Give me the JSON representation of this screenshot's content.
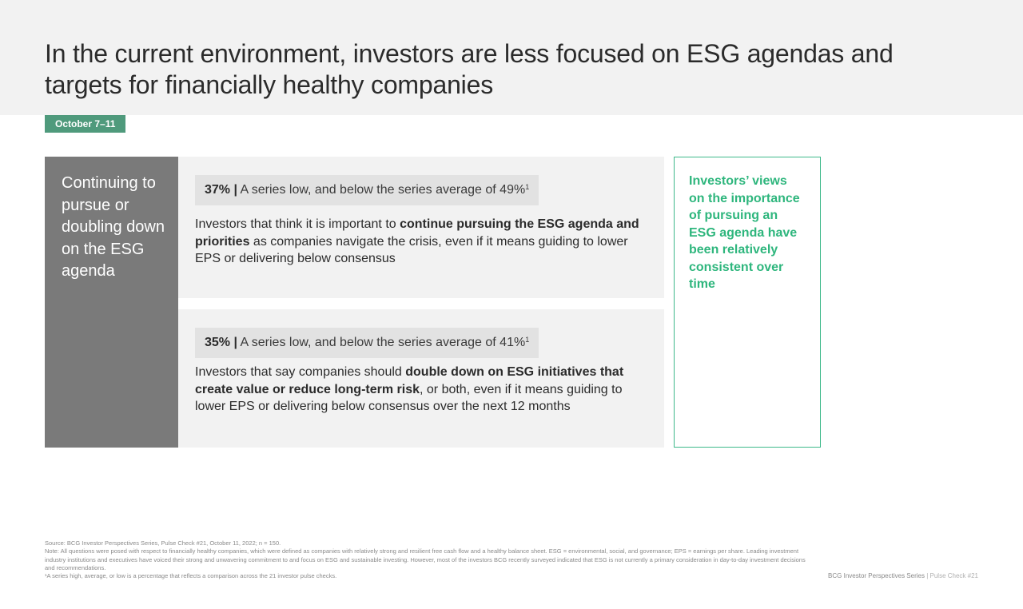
{
  "title": "In the current environment, investors are less focused on ESG agendas and targets for financially healthy companies",
  "date_tag": "October 7–11",
  "side_label": "Continuing to pursue or doubling down on the ESG agenda",
  "cards": [
    {
      "stat_pct": "37%",
      "stat_sep": "|",
      "stat_text": " A series low, and below the series average of 49%",
      "stat_sup": "1",
      "text_pre": "Investors that think it is important to ",
      "text_bold": "continue pursuing the ESG agenda and priorities",
      "text_post": " as companies navigate the crisis, even if it means guiding to lower EPS or delivering below consensus"
    },
    {
      "stat_pct": "35%",
      "stat_sep": "|",
      "stat_text": " A series low, and below the series average of 41%",
      "stat_sup": "1",
      "text_pre": "Investors that say companies should ",
      "text_bold": "double down on ESG initiatives that create value or reduce long-term risk",
      "text_post": ", or both, even if it means guiding to lower EPS or delivering below consensus over the next 12 months"
    }
  ],
  "callout": "Investors’ views on the importance of pursuing an ESG agenda have been relatively consistent over time",
  "footnotes": {
    "source": "Source: BCG Investor Perspectives Series, Pulse Check #21, October 11, 2022; n = 150.",
    "note": "Note: All questions were posed with respect to financially healthy companies, which were defined as companies with relatively strong and resilient free cash flow and a healthy balance sheet. ESG = environmental, social, and governance; EPS = earnings per share. Leading investment industry institutions and executives have voiced their strong and unwavering commitment to and focus on ESG and sustainable investing. However, most of the investors BCG recently surveyed indicated that ESG is not currently a primary consideration in day-to-day investment decisions and recommendations.",
    "superscript_note": "¹A series high, average, or low is a percentage that reflects a comparison across the 21 investor pulse checks."
  },
  "footer": {
    "series": "BCG Investor Perspectives Series",
    "divider": " | ",
    "pulse": "Pulse Check #21"
  },
  "colors": {
    "header_band": "#f2f2f2",
    "date_tag": "#4f9a7c",
    "side_panel": "#7a7a7a",
    "card_bg": "#f2f2f2",
    "callout_accent": "#2eb67d"
  }
}
